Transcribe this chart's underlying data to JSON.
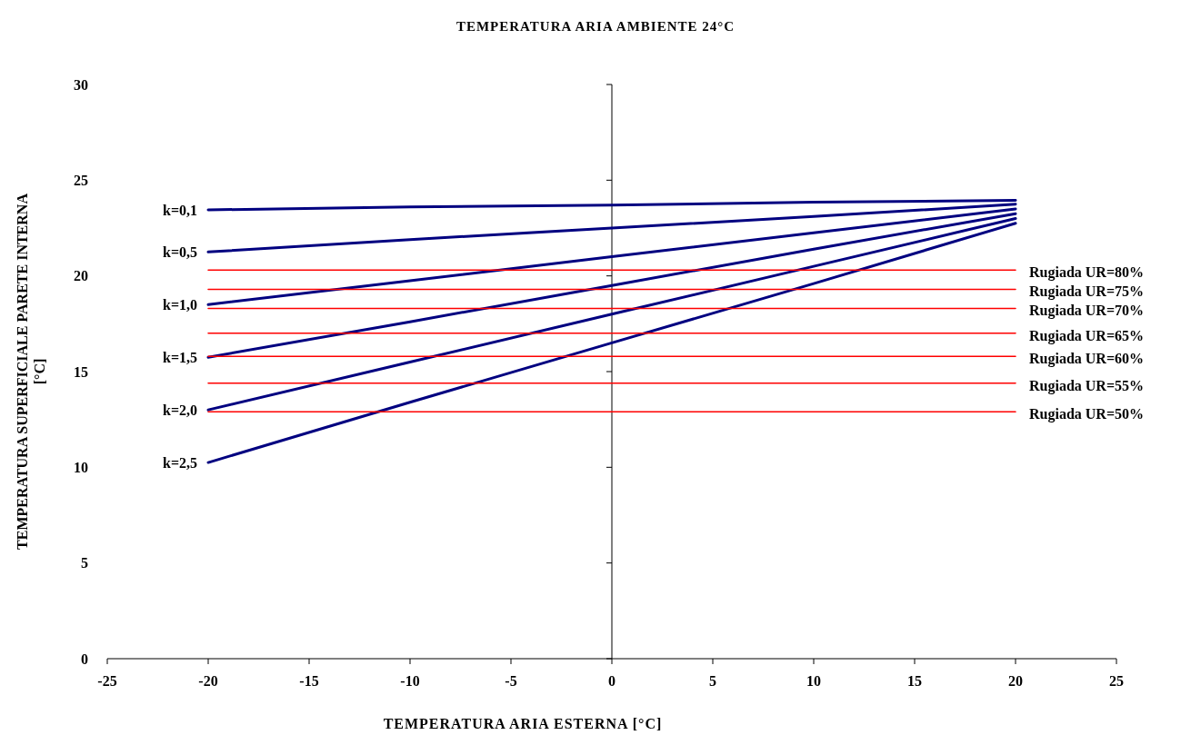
{
  "chart_data": {
    "type": "line",
    "title": "TEMPERATURA ARIA AMBIENTE 24°C",
    "xlabel": "TEMPERATURA ARIA ESTERNA [°C]",
    "ylabel": "TEMPERATURA SUPERFICIALE PARETE INTERNA [°C]",
    "x": [
      -20,
      -10,
      0,
      10,
      20
    ],
    "series": [
      {
        "name": "k=0,1",
        "color": "#000080",
        "values": [
          23.45,
          23.6,
          23.7,
          23.85,
          23.95
        ]
      },
      {
        "name": "k=0,5",
        "color": "#000080",
        "values": [
          21.25,
          21.9,
          22.5,
          23.1,
          23.75
        ]
      },
      {
        "name": "k=1,0",
        "color": "#000080",
        "values": [
          18.5,
          19.75,
          21,
          22.25,
          23.5
        ]
      },
      {
        "name": "k=1,5",
        "color": "#000080",
        "values": [
          15.75,
          17.6,
          19.5,
          21.4,
          23.25
        ]
      },
      {
        "name": "k=2,0",
        "color": "#000080",
        "values": [
          13,
          15.5,
          18,
          20.5,
          23
        ]
      },
      {
        "name": "k=2,5",
        "color": "#000080",
        "values": [
          10.25,
          13.4,
          16.5,
          19.6,
          22.75
        ]
      },
      {
        "name": "Rugiada UR=80%",
        "color": "#ff0000",
        "values": [
          20.3,
          20.3,
          20.3,
          20.3,
          20.3
        ]
      },
      {
        "name": "Rugiada UR=75%",
        "color": "#ff0000",
        "values": [
          19.3,
          19.3,
          19.3,
          19.3,
          19.3
        ]
      },
      {
        "name": "Rugiada UR=70%",
        "color": "#ff0000",
        "values": [
          18.3,
          18.3,
          18.3,
          18.3,
          18.3
        ]
      },
      {
        "name": "Rugiada UR=65%",
        "color": "#ff0000",
        "values": [
          17.0,
          17.0,
          17.0,
          17.0,
          17.0
        ]
      },
      {
        "name": "Rugiada UR=60%",
        "color": "#ff0000",
        "values": [
          15.8,
          15.8,
          15.8,
          15.8,
          15.8
        ]
      },
      {
        "name": "Rugiada UR=55%",
        "color": "#ff0000",
        "values": [
          14.4,
          14.4,
          14.4,
          14.4,
          14.4
        ]
      },
      {
        "name": "Rugiada UR=50%",
        "color": "#ff0000",
        "values": [
          12.9,
          12.9,
          12.9,
          12.9,
          12.9
        ]
      }
    ],
    "xlim": [
      -25,
      25
    ],
    "xticks": [
      -25,
      -20,
      -15,
      -10,
      -5,
      0,
      5,
      10,
      15,
      20,
      25
    ],
    "ylim": [
      0,
      30
    ],
    "yticks": [
      0,
      5,
      10,
      15,
      20,
      25,
      30
    ],
    "marker": "none",
    "line_style": "solid"
  }
}
